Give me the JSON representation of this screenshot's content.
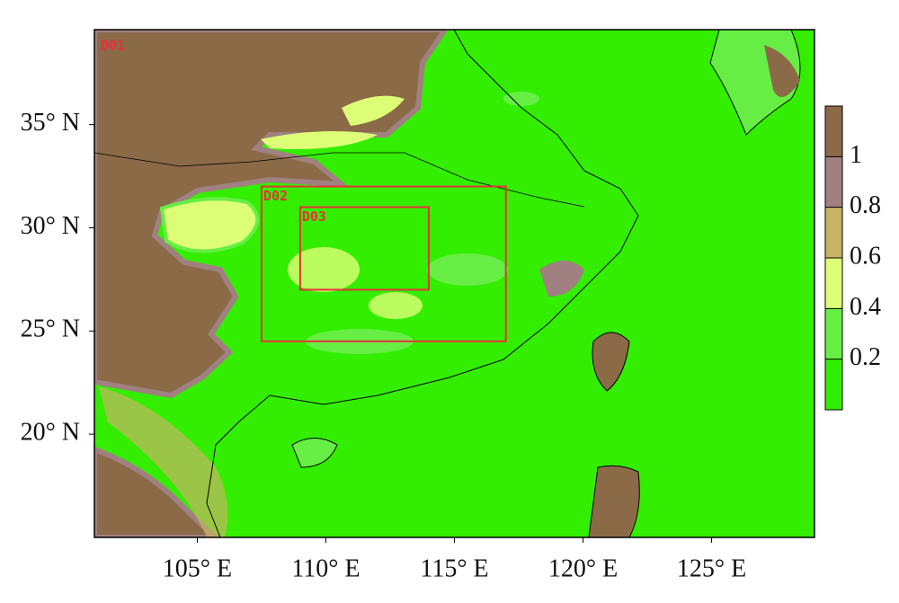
{
  "map": {
    "xlim": [
      101,
      129
    ],
    "ylim": [
      15,
      39.6
    ],
    "xticks": [
      {
        "value": 105,
        "label": "105° E"
      },
      {
        "value": 110,
        "label": "110° E"
      },
      {
        "value": 115,
        "label": "115° E"
      },
      {
        "value": 120,
        "label": "120° E"
      },
      {
        "value": 125,
        "label": "125° E"
      }
    ],
    "yticks": [
      {
        "value": 20,
        "label": "20° N"
      },
      {
        "value": 25,
        "label": "25° N"
      },
      {
        "value": 30,
        "label": "30° N"
      },
      {
        "value": 35,
        "label": "35° N"
      }
    ],
    "colorbar": {
      "clim": [
        0,
        1.2
      ],
      "ticks": [
        0.2,
        0.4,
        0.6,
        0.8,
        1
      ],
      "colors": [
        "#33ee00",
        "#66ee44",
        "#ddff77",
        "#c8b464",
        "#a08080",
        "#8b6a48"
      ]
    },
    "domains": [
      {
        "label": "D01"
      },
      {
        "label": "D02",
        "lon": [
          107.5,
          117
        ],
        "lat": [
          24.5,
          32
        ]
      },
      {
        "label": "D03",
        "lon": [
          109,
          114
        ],
        "lat": [
          27,
          31
        ]
      }
    ]
  }
}
